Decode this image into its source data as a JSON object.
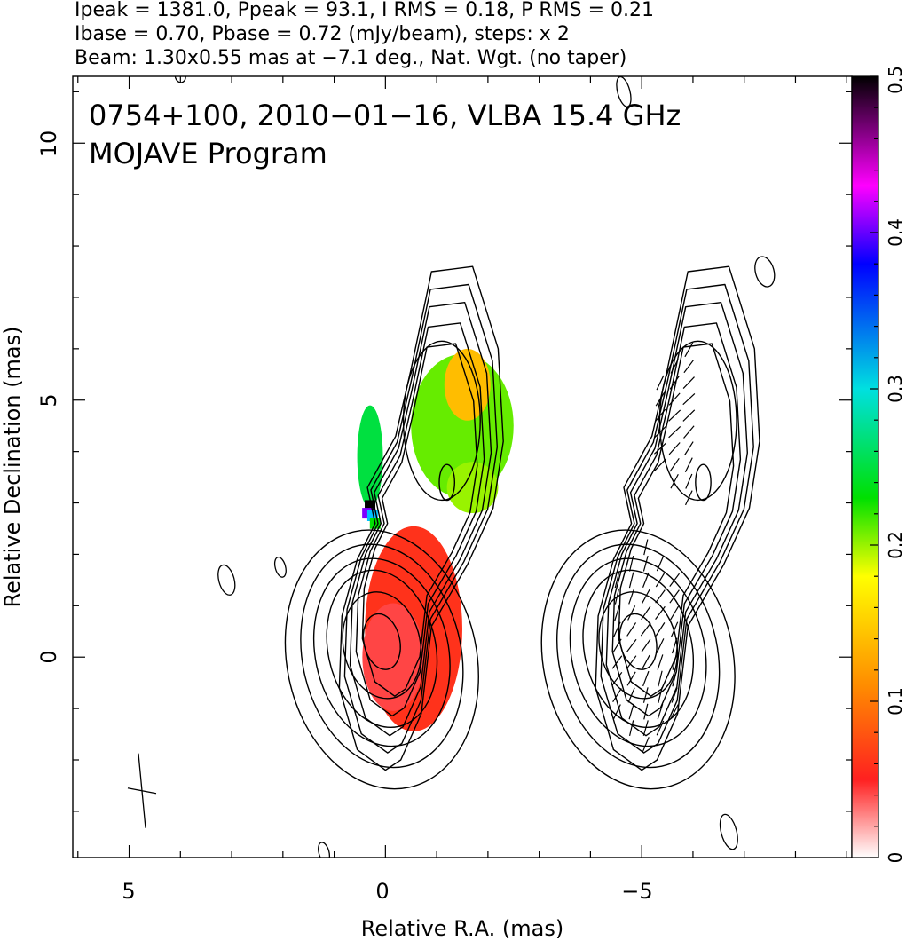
{
  "header": {
    "line1": "Ipeak = 1381.0, Ppeak = 93.1, I RMS = 0.18, P RMS = 0.21",
    "line2": "Ibase = 0.70, Pbase = 0.72 (mJy/beam), steps: x 2",
    "line3": "Beam: 1.30x0.55 mas at −7.1 deg., Nat. Wgt. (no taper)"
  },
  "chart_data": {
    "type": "heatmap",
    "title": "0754+100, 2010−01−16, VLBA 15.4 GHz",
    "subtitle": "MOJAVE Program",
    "xlabel": "Relative R.A. (mas)",
    "ylabel": "Relative Declination (mas)",
    "xlim": [
      6.1,
      -9.1
    ],
    "ylim": [
      -3.9,
      11.3
    ],
    "x_ticks": [
      {
        "value": 5,
        "label": "5"
      },
      {
        "value": 0,
        "label": "0"
      },
      {
        "value": -5,
        "label": "−5"
      }
    ],
    "y_ticks": [
      {
        "value": 0,
        "label": "0"
      },
      {
        "value": 5,
        "label": "5"
      },
      {
        "value": 10,
        "label": "10"
      }
    ],
    "colorbar": {
      "range": [
        0,
        0.5
      ],
      "ticks": [
        {
          "value": 0,
          "label": "0"
        },
        {
          "value": 0.1,
          "label": "0.1"
        },
        {
          "value": 0.2,
          "label": "0.2"
        },
        {
          "value": 0.3,
          "label": "0.3"
        },
        {
          "value": 0.4,
          "label": "0.4"
        },
        {
          "value": 0.5,
          "label": "0.5"
        }
      ],
      "colors": [
        "#ffffff",
        "#ff2020",
        "#ff8c00",
        "#ffff00",
        "#00e000",
        "#00e0e0",
        "#0000ff",
        "#ff00ff",
        "#000000"
      ]
    },
    "panels": [
      "total intensity contours with fractional polarization color map",
      "total intensity contours with EVPA sticks"
    ],
    "jet": {
      "core": [
        0.0,
        0.3
      ],
      "peak_intensity": 1381.0,
      "contour_base": 0.7,
      "contour_step": 2,
      "contour_radii": [
        [
          0.35,
          0.55
        ],
        [
          0.75,
          1.05
        ],
        [
          1.05,
          1.55
        ],
        [
          1.3,
          1.85
        ],
        [
          1.55,
          2.2
        ],
        [
          1.85,
          2.55
        ]
      ],
      "extended_component": [
        -1.1,
        4.6
      ]
    },
    "color_regions": [
      {
        "x": -0.55,
        "y": 0.55,
        "rx": 0.95,
        "ry": 2.0,
        "value": 0.06
      },
      {
        "x": -0.15,
        "y": 0.0,
        "rx": 0.6,
        "ry": 1.05,
        "value": 0.04
      },
      {
        "x": -1.5,
        "y": 4.5,
        "rx": 1.0,
        "ry": 1.4,
        "value": 0.21
      },
      {
        "x": -1.7,
        "y": 3.3,
        "rx": 0.5,
        "ry": 0.5,
        "value": 0.2
      },
      {
        "x": -1.6,
        "y": 5.3,
        "rx": 0.45,
        "ry": 0.7,
        "value": 0.14
      },
      {
        "x": 0.3,
        "y": 3.9,
        "rx": 0.25,
        "ry": 1.0,
        "value": 0.25
      }
    ]
  }
}
